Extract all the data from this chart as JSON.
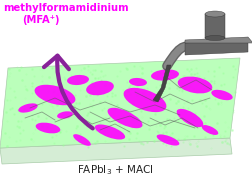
{
  "title_line1": "methylformamidinium",
  "title_line2": "(MFA⁺)",
  "title_color": "#FF00FF",
  "bg_color": "#FFFFFF",
  "slab_top_color": "#BBFFBB",
  "slab_side_color": "#DDEEDD",
  "magenta_patch_color": "#FF00FF",
  "dark_vein_color": "#555555",
  "arrow_color": "#882299",
  "probe_body_color": "#666666",
  "probe_dark_color": "#444444",
  "probe_light_color": "#888888",
  "bottom_label": "FAPbI$_3$ + MACl",
  "bottom_label_color": "#222222"
}
